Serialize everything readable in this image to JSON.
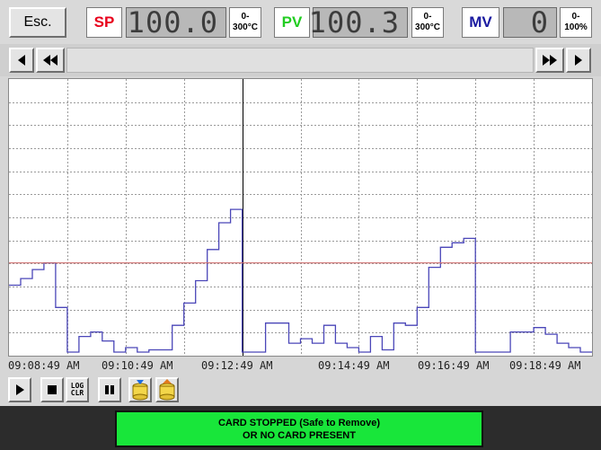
{
  "header": {
    "esc_label": "Esc.",
    "sp": {
      "tag": "SP",
      "value": "100.0",
      "range_top": "0-",
      "range_bottom": "300°C",
      "color": "#e8001c"
    },
    "pv": {
      "tag": "PV",
      "value": "100.3",
      "range_top": "0-",
      "range_bottom": "300°C",
      "color": "#22cc22"
    },
    "mv": {
      "tag": "MV",
      "value": "0",
      "range_top": "0-",
      "range_bottom": "100%",
      "color": "#1a1aa0"
    }
  },
  "nav": {
    "left_icons": [
      "step-back-icon",
      "rewind-icon"
    ],
    "right_icons": [
      "fast-forward-icon",
      "step-forward-icon"
    ]
  },
  "chart_data": {
    "type": "line",
    "x_time_labels": [
      "09:08:49 AM",
      "09:10:49 AM",
      "09:12:49 AM",
      "09:14:49 AM",
      "09:16:49 AM",
      "09:18:49 AM"
    ],
    "ylim": [
      0,
      12
    ],
    "grid": true,
    "series": [
      {
        "color": "#4a46b8",
        "x": [
          0,
          1,
          1,
          2,
          2,
          3,
          3,
          4,
          4,
          5,
          5,
          6,
          6,
          7,
          7,
          8,
          8,
          9,
          9,
          10,
          10,
          11,
          11,
          12,
          12,
          13,
          13,
          14,
          14,
          15,
          15,
          16,
          16,
          17,
          17,
          18,
          18,
          19,
          19,
          20,
          20,
          21,
          21,
          22,
          22,
          23,
          23,
          24,
          24,
          25,
          25,
          26,
          26,
          27,
          27,
          28,
          28,
          29,
          29,
          30,
          30,
          31,
          31,
          32,
          32,
          33,
          33,
          34,
          34,
          35,
          35,
          36,
          36,
          37,
          37,
          38,
          38,
          39,
          39,
          40,
          40,
          41,
          41,
          42,
          42,
          43,
          43,
          44,
          44,
          45,
          45,
          46,
          46,
          47,
          47,
          48,
          48,
          49,
          49,
          50
        ],
        "y": [
          3.0,
          3.0,
          3.3,
          3.3,
          3.7,
          3.7,
          4.0,
          4.0,
          2.0,
          2.0,
          0,
          0,
          0.7,
          0.7,
          0.9,
          0.9,
          0.5,
          0.5,
          0,
          0,
          0.2,
          0.2,
          0,
          0,
          0.1,
          0.1,
          0.1,
          0.1,
          1.2,
          1.2,
          2.2,
          2.2,
          3.2,
          3.2,
          4.6,
          4.6,
          5.8,
          5.8,
          6.4,
          6.4,
          0,
          0,
          0,
          0,
          1.3,
          1.3,
          1.3,
          1.3,
          0.4,
          0.4,
          0.6,
          0.6,
          0.4,
          0.4,
          1.2,
          1.2,
          0.4,
          0.4,
          0.2,
          0.2,
          0,
          0,
          0.7,
          0.7,
          0.1,
          0.1,
          1.3,
          1.3,
          1.2,
          1.2,
          2.0,
          2.0,
          3.8,
          3.8,
          4.7,
          4.7,
          4.9,
          4.9,
          5.1,
          5.1,
          0,
          0,
          0,
          0,
          0,
          0,
          0.9,
          0.9,
          0.9,
          0.9,
          1.1,
          1.1,
          0.8,
          0.8,
          0.4,
          0.4,
          0.2,
          0.2,
          0,
          0
        ]
      },
      {
        "color": "#d07070",
        "x": [
          0,
          50
        ],
        "y": [
          4.0,
          4.0
        ]
      }
    ]
  },
  "toolbar": {
    "icons": [
      "play-icon",
      "stop-icon",
      "log-clear-icon",
      "pause-icon",
      "card-load-icon",
      "card-save-icon"
    ],
    "log_clear_label_1": "LOG",
    "log_clear_label_2": "CLR"
  },
  "status": {
    "line1": "CARD STOPPED (Safe to Remove)",
    "line2": "OR NO CARD PRESENT",
    "color": "#18e63a"
  }
}
